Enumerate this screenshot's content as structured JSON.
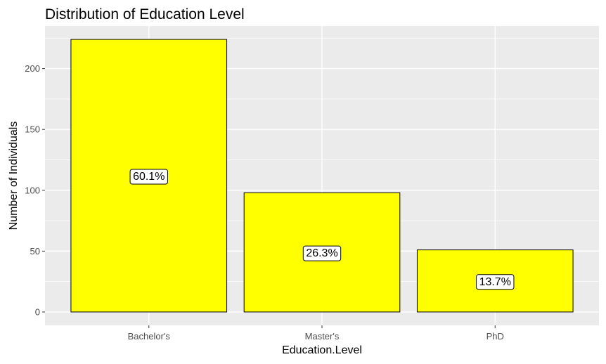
{
  "chart_data": {
    "type": "bar",
    "title": "Distribution of Education Level",
    "xlabel": "Education.Level",
    "ylabel": "Number of Individuals",
    "categories": [
      "Bachelor's",
      "Master's",
      "PhD"
    ],
    "values": [
      224,
      98,
      51
    ],
    "data_labels": [
      "60.1%",
      "26.3%",
      "13.7%"
    ],
    "yticks": [
      0,
      50,
      100,
      150,
      200
    ],
    "ytick_labels": [
      "0",
      "50",
      "100",
      "150",
      "200"
    ],
    "ylim": [
      -11,
      235
    ],
    "grid": true,
    "legend": "none",
    "colors": {
      "bar_fill": "#ffff00",
      "bar_stroke": "#000000",
      "panel_background": "#ebebeb",
      "grid": "#ffffff",
      "label_box": "#ffffff"
    }
  }
}
